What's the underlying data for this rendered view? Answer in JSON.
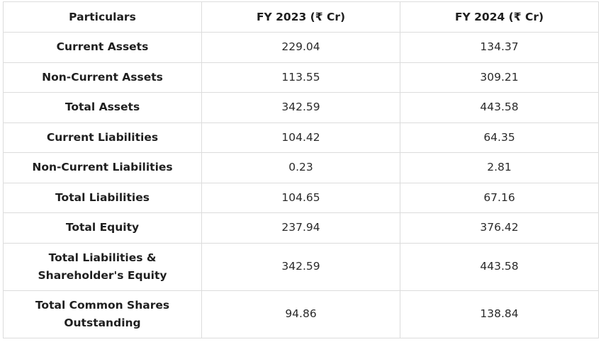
{
  "table": {
    "headers": [
      "Particulars",
      "FY 2023 (₹ Cr)",
      "FY 2024 (₹ Cr)"
    ],
    "rows": [
      {
        "particular": "Current Assets",
        "fy2023": "229.04",
        "fy2024": "134.37"
      },
      {
        "particular": "Non-Current Assets",
        "fy2023": "113.55",
        "fy2024": "309.21"
      },
      {
        "particular": "Total Assets",
        "fy2023": "342.59",
        "fy2024": "443.58"
      },
      {
        "particular": "Current Liabilities",
        "fy2023": "104.42",
        "fy2024": "64.35"
      },
      {
        "particular": "Non-Current Liabilities",
        "fy2023": "0.23",
        "fy2024": "2.81"
      },
      {
        "particular": "Total Liabilities",
        "fy2023": "104.65",
        "fy2024": "67.16"
      },
      {
        "particular": "Total Equity",
        "fy2023": "237.94",
        "fy2024": "376.42"
      },
      {
        "particular": "Total Liabilities & Shareholder's Equity",
        "fy2023": "342.59",
        "fy2024": "443.58"
      },
      {
        "particular": "Total Common Shares Outstanding",
        "fy2023": "94.86",
        "fy2024": "138.84"
      }
    ]
  },
  "colors": {
    "border": "#dcdcdc",
    "text": "#1f1f1f",
    "background": "#ffffff"
  }
}
